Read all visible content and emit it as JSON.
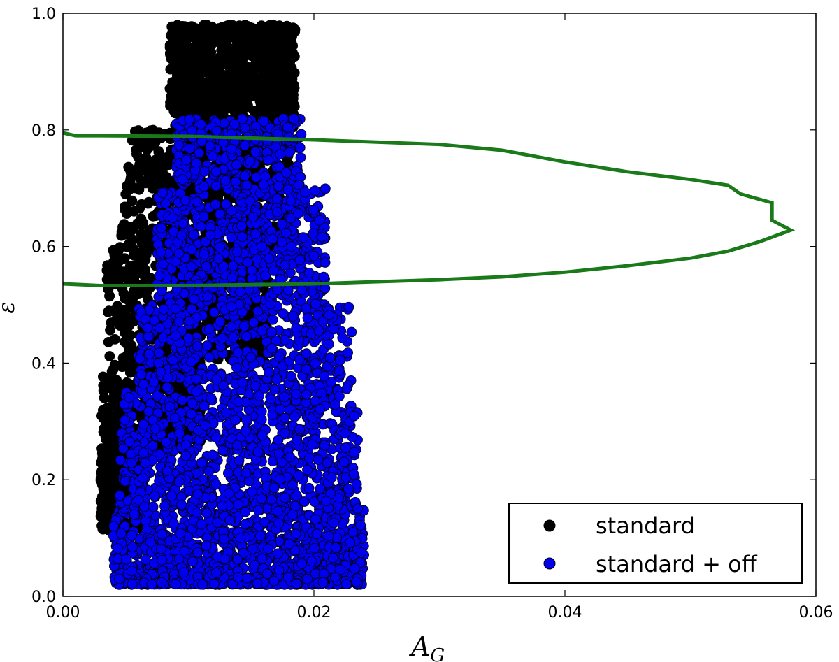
{
  "chart_data": {
    "type": "scatter",
    "title": "",
    "xlabel": "A",
    "xlabel_sub": "G",
    "ylabel": "ε",
    "xlim": [
      0.0,
      0.06
    ],
    "ylim": [
      0.0,
      1.0
    ],
    "xticks": [
      0.0,
      0.02,
      0.04,
      0.06
    ],
    "xtick_labels": [
      "0.00",
      "0.02",
      "0.04",
      "0.06"
    ],
    "yticks": [
      0.0,
      0.2,
      0.4,
      0.6,
      0.8,
      1.0
    ],
    "ytick_labels": [
      "0.0",
      "0.2",
      "0.4",
      "0.6",
      "0.8",
      "1.0"
    ],
    "grid": false,
    "legend_position": "lower-right",
    "series": [
      {
        "name": "standard",
        "kind": "scatter",
        "color": "#000000",
        "edge_color": "#000000",
        "description_region": "dense cloud, x≈0.003–0.018, y≈0.11–0.98; wide top at y>0.8 (x≈0.009–0.018), narrowing to x≈0.003–0.006 near y≈0.1–0.3"
      },
      {
        "name": "standard + off",
        "kind": "scatter",
        "color": "#0000ee",
        "edge_color": "#000000",
        "description_region": "dense cloud, x≈0.004–0.024, y≈0.02–0.82; widest at bottom"
      }
    ],
    "curve": {
      "name": "",
      "kind": "line",
      "color": "#1a7a1a",
      "points": [
        [
          0.0,
          0.795
        ],
        [
          0.001,
          0.79
        ],
        [
          0.003,
          0.79
        ],
        [
          0.01,
          0.789
        ],
        [
          0.02,
          0.783
        ],
        [
          0.03,
          0.775
        ],
        [
          0.035,
          0.765
        ],
        [
          0.04,
          0.745
        ],
        [
          0.045,
          0.728
        ],
        [
          0.05,
          0.715
        ],
        [
          0.053,
          0.705
        ],
        [
          0.054,
          0.69
        ],
        [
          0.0565,
          0.675
        ],
        [
          0.0565,
          0.645
        ],
        [
          0.058,
          0.628
        ],
        [
          0.057,
          0.62
        ],
        [
          0.0555,
          0.608
        ],
        [
          0.053,
          0.592
        ],
        [
          0.05,
          0.58
        ],
        [
          0.045,
          0.567
        ],
        [
          0.04,
          0.556
        ],
        [
          0.035,
          0.548
        ],
        [
          0.03,
          0.543
        ],
        [
          0.02,
          0.536
        ],
        [
          0.01,
          0.533
        ],
        [
          0.003,
          0.533
        ],
        [
          0.0,
          0.536
        ]
      ]
    }
  }
}
